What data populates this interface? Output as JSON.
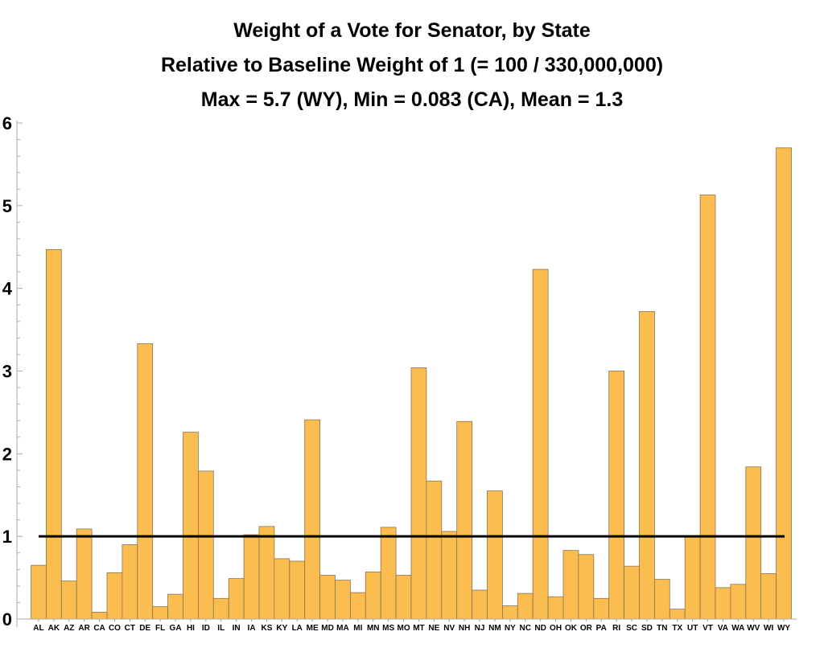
{
  "chart_data": {
    "type": "bar",
    "title": [
      "Weight of a Vote for Senator, by State",
      "Relative to Baseline Weight of 1 (= 100 / 330,000,000)",
      "Max = 5.7 (WY), Min = 0.083 (CA), Mean = 1.3"
    ],
    "xlabel": "",
    "ylabel": "",
    "ylim": [
      0,
      6
    ],
    "yticks": [
      0,
      1,
      2,
      3,
      4,
      5,
      6
    ],
    "grid": false,
    "bar_color": "#FBBD4F",
    "bar_edge_color": "#8a7350",
    "reference_line": {
      "y": 1,
      "color": "#000000"
    },
    "categories": [
      "AL",
      "AK",
      "AZ",
      "AR",
      "CA",
      "CO",
      "CT",
      "DE",
      "FL",
      "GA",
      "HI",
      "ID",
      "IL",
      "IN",
      "IA",
      "KS",
      "KY",
      "LA",
      "ME",
      "MD",
      "MA",
      "MI",
      "MN",
      "MS",
      "MO",
      "MT",
      "NE",
      "NV",
      "NH",
      "NJ",
      "NM",
      "NY",
      "NC",
      "ND",
      "OH",
      "OK",
      "OR",
      "PA",
      "RI",
      "SC",
      "SD",
      "TN",
      "TX",
      "UT",
      "VT",
      "VA",
      "WA",
      "WV",
      "WI",
      "WY"
    ],
    "values": [
      0.65,
      4.47,
      0.46,
      1.09,
      0.083,
      0.56,
      0.9,
      3.33,
      0.15,
      0.3,
      2.26,
      1.79,
      0.25,
      0.49,
      1.02,
      1.12,
      0.73,
      0.7,
      2.41,
      0.53,
      0.47,
      0.32,
      0.57,
      1.11,
      0.53,
      3.04,
      1.67,
      1.06,
      2.39,
      0.35,
      1.55,
      0.16,
      0.31,
      4.23,
      0.27,
      0.83,
      0.78,
      0.25,
      3.0,
      0.64,
      3.72,
      0.48,
      0.12,
      1.0,
      5.13,
      0.38,
      0.42,
      1.84,
      0.55,
      5.7
    ]
  }
}
